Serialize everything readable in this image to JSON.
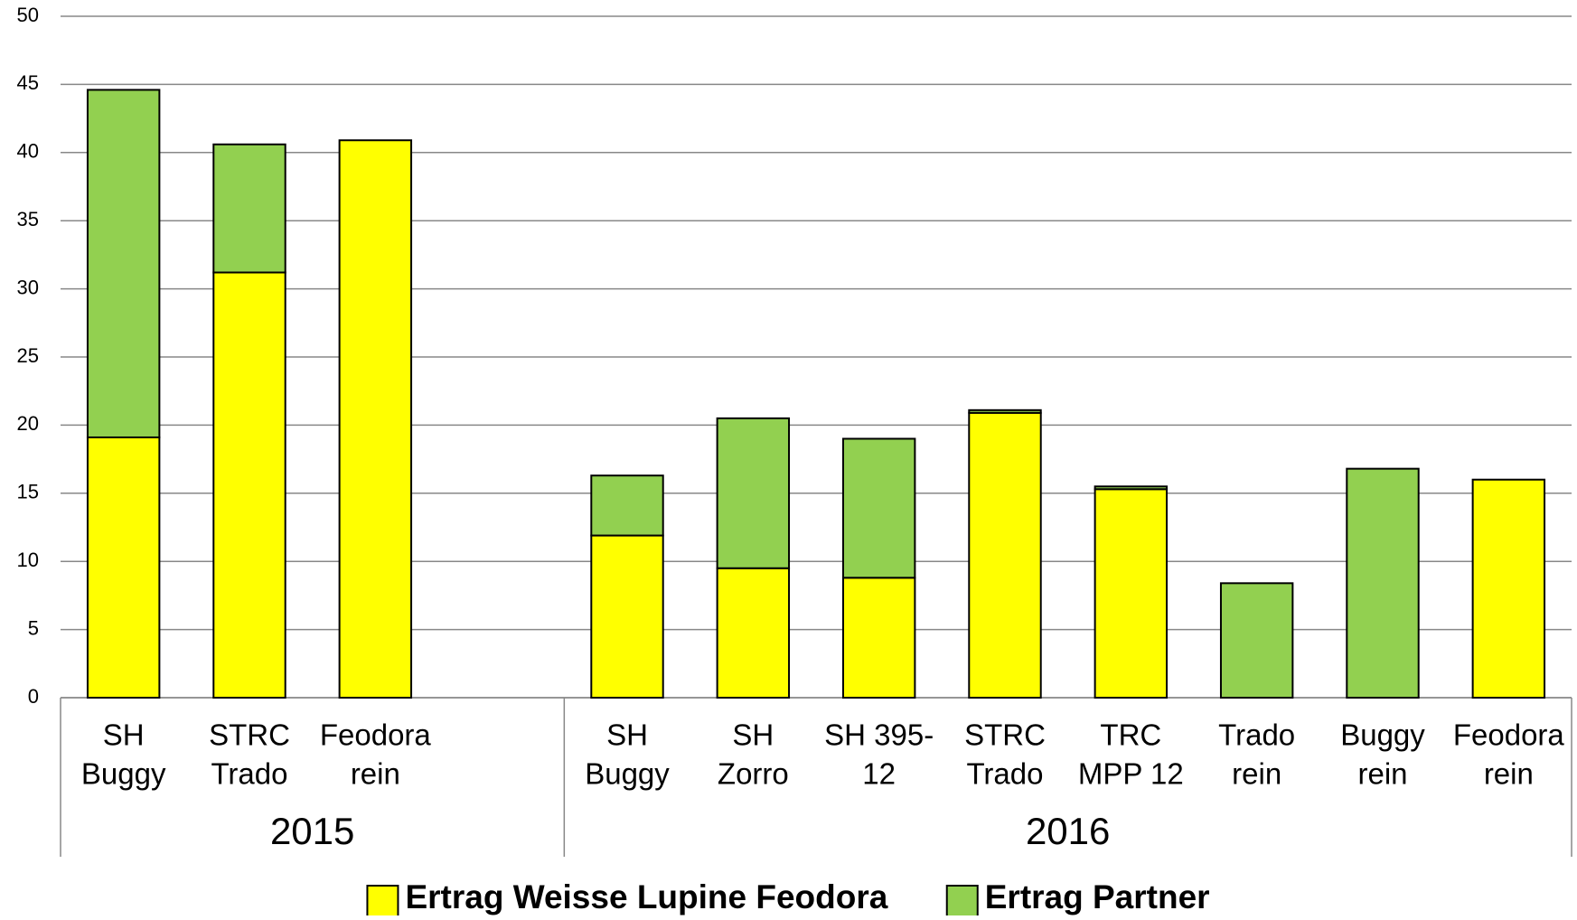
{
  "chart_data": {
    "type": "stacked_bar",
    "categories": [
      [
        "SH",
        "Buggy"
      ],
      [
        "STRC",
        "Trado"
      ],
      [
        "Feodora",
        "rein"
      ],
      null,
      [
        "SH",
        "Buggy"
      ],
      [
        "SH",
        "Zorro"
      ],
      [
        "SH 395-",
        "12"
      ],
      [
        "STRC",
        "Trado"
      ],
      [
        "TRC",
        "MPP 12"
      ],
      [
        "Trado",
        "rein"
      ],
      [
        "Buggy",
        "rein"
      ],
      [
        "Feodora",
        "rein"
      ]
    ],
    "groups": [
      "2015",
      "2015",
      "2015",
      "2015",
      "2016",
      "2016",
      "2016",
      "2016",
      "2016",
      "2016",
      "2016",
      "2016"
    ],
    "series": [
      {
        "name": "Ertrag Weisse Lupine Feodora",
        "color": "#ffff00",
        "values": [
          19.1,
          31.2,
          40.9,
          null,
          11.9,
          9.5,
          8.8,
          20.9,
          15.3,
          0,
          0,
          16.0
        ]
      },
      {
        "name": "Ertrag Partner",
        "color": "#92d050",
        "values": [
          25.5,
          9.4,
          0,
          null,
          4.4,
          11.0,
          10.2,
          0.2,
          0.2,
          8.4,
          16.8,
          0
        ]
      }
    ],
    "ylim": [
      0,
      50
    ],
    "yticks": [
      0,
      5,
      10,
      15,
      20,
      25,
      30,
      35,
      40,
      45,
      50
    ],
    "grid": true,
    "legend": "bottom"
  }
}
